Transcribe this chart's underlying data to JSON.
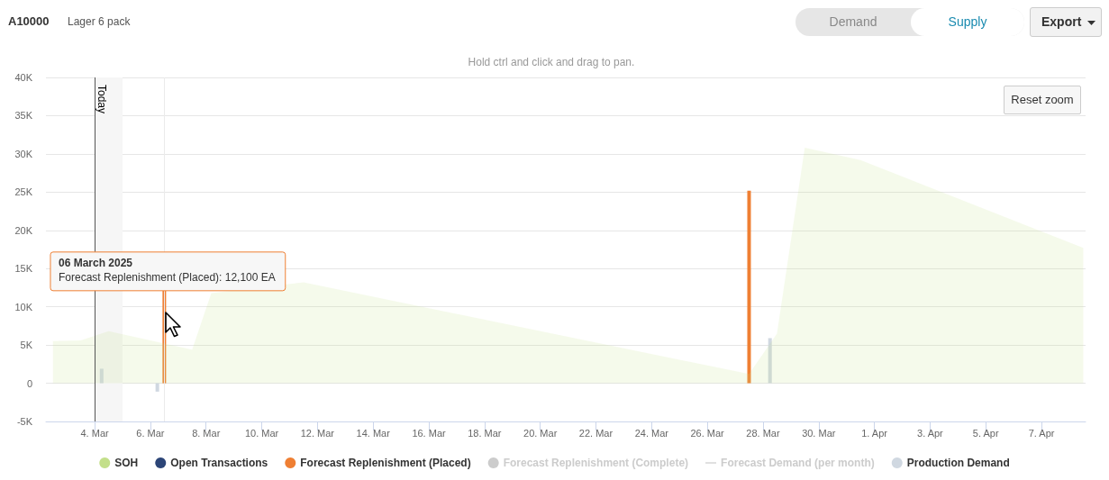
{
  "chart_data": {
    "type": "bar",
    "title": "A10000",
    "subtitle": "Lager 6 pack",
    "annotations": [
      "Hold ctrl and click and drag to pan.",
      "Demand",
      "Supply",
      "Export",
      "Reset zoom",
      "06 March 2025",
      {
        "text": "Forecast Replenishment (Placed): 12,100 EA",
        "x": "2025-03-06T12:00",
        "y": 12100
      }
    ],
    "series": [
      {
        "name": "SOH",
        "type": "area",
        "color": "#c3df8a",
        "x": [
          "2025-03-02T12:00",
          "2025-03-03T12:00",
          "2025-03-04T12:00",
          "2025-03-07T12:00",
          "2025-03-08T04:30",
          "2025-03-11T12:00",
          "2025-03-27T12:00",
          "2025-03-28T12:00",
          "2025-03-29T12:00",
          "2025-03-31T12:00",
          "2025-04-08T12:00"
        ],
        "values": [
          5500,
          5600,
          6800,
          4400,
          11800,
          13200,
          1200,
          6500,
          30800,
          29200,
          17700
        ]
      },
      {
        "name": "Open Transactions",
        "color": "#2c4577"
      },
      {
        "name": "Forecast Replenishment (Placed)",
        "color": "#ef7f33",
        "x": [
          "2025-03-06T12:00",
          "2025-03-27T12:00"
        ],
        "values": [
          12100,
          25200
        ]
      },
      {
        "name": "Forecast Replenishment (Complete)"
      },
      {
        "name": "Forecast Demand (per month)",
        "type": "line"
      },
      {
        "name": "Production Demand",
        "color": "#d0d8e1",
        "x": [
          "2025-03-04T06:00",
          "2025-03-06T06:00",
          "2025-03-28T06:00"
        ],
        "values": [
          1900,
          -1100,
          5900
        ]
      }
    ],
    "xlim": [
      "2025-03-02T06:00",
      "2025-04-08T14:00"
    ],
    "xticks": [
      {
        "value": "2025-03-04",
        "label": "4. Mar"
      },
      {
        "value": "2025-03-06",
        "label": "6. Mar"
      },
      {
        "value": "2025-03-08",
        "label": "8. Mar"
      },
      {
        "value": "2025-03-10",
        "label": "10. Mar"
      },
      {
        "value": "2025-03-12",
        "label": "12. Mar"
      },
      {
        "value": "2025-03-14",
        "label": "14. Mar"
      },
      {
        "value": "2025-03-16",
        "label": "16. Mar"
      },
      {
        "value": "2025-03-18",
        "label": "18. Mar"
      },
      {
        "value": "2025-03-20",
        "label": "20. Mar"
      },
      {
        "value": "2025-03-22",
        "label": "22. Mar"
      },
      {
        "value": "2025-03-24",
        "label": "24. Mar"
      },
      {
        "value": "2025-03-26",
        "label": "26. Mar"
      },
      {
        "value": "2025-03-28",
        "label": "28. Mar"
      },
      {
        "value": "2025-03-30",
        "label": "30. Mar"
      },
      {
        "value": "2025-04-01",
        "label": "1. Apr"
      },
      {
        "value": "2025-04-03",
        "label": "3. Apr"
      },
      {
        "value": "2025-04-05",
        "label": "5. Apr"
      },
      {
        "value": "2025-04-07",
        "label": "7. Apr"
      }
    ],
    "ylim": [
      -5000,
      40000
    ],
    "yticks": [
      {
        "value": -5000,
        "label": "-5K"
      },
      0,
      {
        "value": 5000,
        "label": "5K"
      },
      {
        "value": 10000,
        "label": "10K"
      },
      {
        "value": 15000,
        "label": "15K"
      },
      {
        "value": 20000,
        "label": "20K"
      },
      {
        "value": 25000,
        "label": "25K"
      },
      {
        "value": 30000,
        "label": "30K"
      },
      {
        "value": 35000,
        "label": "35K"
      },
      {
        "value": 40000,
        "label": "40K"
      }
    ],
    "grid": "y",
    "legend": "bottom",
    "ref_lines": [
      {
        "axis": "x",
        "value": "2025-03-04",
        "label": "Today",
        "color": "#555555"
      },
      {
        "axis": "x",
        "value": "2025-03-06T12:00",
        "color": "#ebebeb"
      }
    ],
    "bands": [
      {
        "axis": "x",
        "from": "2025-03-04",
        "to": "2025-03-05",
        "color": "#f6f6f6"
      }
    ]
  }
}
